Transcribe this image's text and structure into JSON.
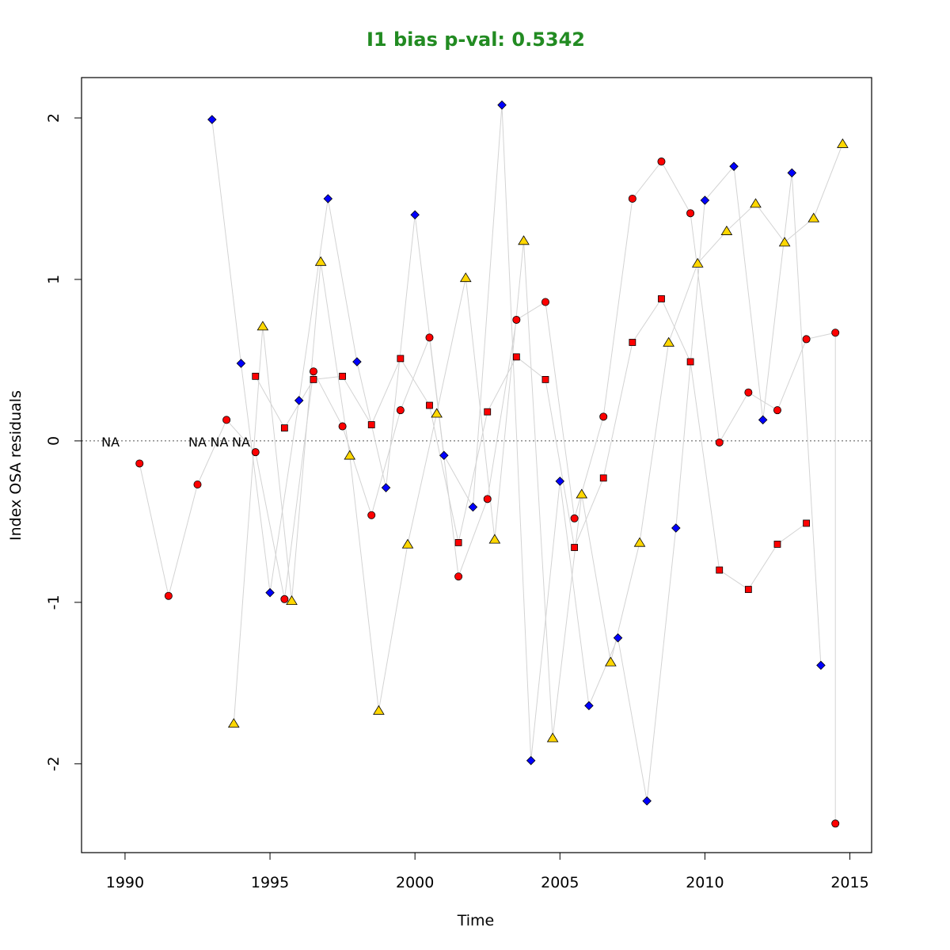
{
  "chart_data": {
    "type": "scatter",
    "title": "I1 bias p-val: 0.5342",
    "title_color": "#228B22",
    "xlabel": "Time",
    "ylabel": "Index OSA residuals",
    "xlim": [
      1988.5,
      2015.75
    ],
    "ylim": [
      -2.55,
      2.25
    ],
    "x_ticks": [
      1990,
      1995,
      2000,
      2005,
      2010,
      2015
    ],
    "y_ticks": [
      -2,
      -1,
      0,
      1,
      2
    ],
    "reference_line": {
      "y": 0,
      "style": "dotted",
      "color": "#555555"
    },
    "connector_color": "#d3d3d3",
    "na_labels": [
      {
        "x": 1989.5,
        "text": "NA"
      },
      {
        "x": 1992.5,
        "text": "NA"
      },
      {
        "x": 1993.25,
        "text": "NA"
      },
      {
        "x": 1994.0,
        "text": "NA"
      }
    ],
    "series": [
      {
        "marker": "circle",
        "color": "#ff0000",
        "points": [
          [
            1990.5,
            -0.14
          ],
          [
            1991.5,
            -0.96
          ],
          [
            1992.5,
            -0.27
          ],
          [
            1993.5,
            0.13
          ],
          [
            1994.5,
            -0.07
          ],
          [
            1995.5,
            -0.98
          ],
          [
            1996.5,
            0.43
          ],
          [
            1997.5,
            0.09
          ],
          [
            1998.5,
            -0.46
          ],
          [
            1999.5,
            0.19
          ],
          [
            2000.5,
            0.64
          ],
          [
            2001.5,
            -0.84
          ],
          [
            2002.5,
            -0.36
          ],
          [
            2003.5,
            0.75
          ],
          [
            2004.5,
            0.86
          ],
          [
            2005.5,
            -0.48
          ],
          [
            2006.5,
            0.15
          ],
          [
            2007.5,
            1.5
          ],
          [
            2008.5,
            1.73
          ],
          [
            2009.5,
            1.41
          ],
          [
            2010.5,
            -0.01
          ],
          [
            2011.5,
            0.3
          ],
          [
            2012.5,
            0.19
          ],
          [
            2013.5,
            0.63
          ],
          [
            2014.5,
            0.67
          ],
          [
            2014.5,
            -2.37
          ]
        ]
      },
      {
        "marker": "square",
        "color": "#ff0000",
        "points": [
          [
            1994.5,
            0.4
          ],
          [
            1995.5,
            0.08
          ],
          [
            1996.5,
            0.38
          ],
          [
            1997.5,
            0.4
          ],
          [
            1998.5,
            0.1
          ],
          [
            1999.5,
            0.51
          ],
          [
            2000.5,
            0.22
          ],
          [
            2001.5,
            -0.63
          ],
          [
            2002.5,
            0.18
          ],
          [
            2003.5,
            0.52
          ],
          [
            2004.5,
            0.38
          ],
          [
            2005.5,
            -0.66
          ],
          [
            2006.5,
            -0.23
          ],
          [
            2007.5,
            0.61
          ],
          [
            2008.5,
            0.88
          ],
          [
            2009.5,
            0.49
          ],
          [
            2010.5,
            -0.8
          ],
          [
            2011.5,
            -0.92
          ],
          [
            2012.5,
            -0.64
          ],
          [
            2013.5,
            -0.51
          ]
        ]
      },
      {
        "marker": "diamond",
        "color": "#0000ff",
        "points": [
          [
            1993.0,
            1.99
          ],
          [
            1994.0,
            0.48
          ],
          [
            1995.0,
            -0.94
          ],
          [
            1996.0,
            0.25
          ],
          [
            1997.0,
            1.5
          ],
          [
            1998.0,
            0.49
          ],
          [
            1999.0,
            -0.29
          ],
          [
            2000.0,
            1.4
          ],
          [
            2001.0,
            -0.09
          ],
          [
            2002.0,
            -0.41
          ],
          [
            2003.0,
            2.08
          ],
          [
            2004.0,
            -1.98
          ],
          [
            2005.0,
            -0.25
          ],
          [
            2006.0,
            -1.64
          ],
          [
            2007.0,
            -1.22
          ],
          [
            2008.0,
            -2.23
          ],
          [
            2009.0,
            -0.54
          ],
          [
            2010.0,
            1.49
          ],
          [
            2011.0,
            1.7
          ],
          [
            2012.0,
            0.13
          ],
          [
            2013.0,
            1.66
          ],
          [
            2014.0,
            -1.39
          ]
        ]
      },
      {
        "marker": "triangle",
        "color": "#ffd700",
        "points": [
          [
            1993.75,
            -1.75
          ],
          [
            1994.75,
            0.71
          ],
          [
            1995.75,
            -0.99
          ],
          [
            1996.75,
            1.11
          ],
          [
            1997.75,
            -0.09
          ],
          [
            1998.75,
            -1.67
          ],
          [
            1999.75,
            -0.64
          ],
          [
            2000.75,
            0.17
          ],
          [
            2001.75,
            1.01
          ],
          [
            2002.75,
            -0.61
          ],
          [
            2003.75,
            1.24
          ],
          [
            2004.75,
            -1.84
          ],
          [
            2005.75,
            -0.33
          ],
          [
            2006.75,
            -1.37
          ],
          [
            2007.75,
            -0.63
          ],
          [
            2008.75,
            0.61
          ],
          [
            2009.75,
            1.1
          ],
          [
            2010.75,
            1.3
          ],
          [
            2011.75,
            1.47
          ],
          [
            2012.75,
            1.23
          ],
          [
            2013.75,
            1.38
          ],
          [
            2014.75,
            1.84
          ]
        ]
      }
    ],
    "connector_paths": [
      [
        [
          1990.5,
          -0.14
        ],
        [
          1991.5,
          -0.96
        ],
        [
          1992.5,
          -0.27
        ],
        [
          1993.5,
          0.13
        ],
        [
          1994.5,
          -0.07
        ],
        [
          1995.5,
          -0.98
        ],
        [
          1996.5,
          0.43
        ],
        [
          1997.5,
          0.09
        ],
        [
          1998.5,
          -0.46
        ],
        [
          1999.5,
          0.19
        ],
        [
          2000.5,
          0.64
        ],
        [
          2001.5,
          -0.84
        ],
        [
          2002.5,
          -0.36
        ],
        [
          2003.5,
          0.75
        ],
        [
          2004.5,
          0.86
        ],
        [
          2005.5,
          -0.48
        ],
        [
          2006.5,
          0.15
        ],
        [
          2007.5,
          1.5
        ],
        [
          2008.5,
          1.73
        ],
        [
          2009.5,
          1.41
        ],
        [
          2010.5,
          -0.01
        ],
        [
          2011.5,
          0.3
        ],
        [
          2012.5,
          0.19
        ],
        [
          2013.5,
          0.63
        ],
        [
          2014.5,
          0.67
        ],
        [
          2014.5,
          -2.37
        ]
      ],
      [
        [
          1994.5,
          0.4
        ],
        [
          1995.5,
          0.08
        ],
        [
          1996.5,
          0.38
        ],
        [
          1997.5,
          0.4
        ],
        [
          1998.5,
          0.1
        ],
        [
          1999.5,
          0.51
        ],
        [
          2000.5,
          0.22
        ],
        [
          2001.5,
          -0.63
        ],
        [
          2002.5,
          0.18
        ],
        [
          2003.5,
          0.52
        ],
        [
          2004.5,
          0.38
        ],
        [
          2005.5,
          -0.66
        ],
        [
          2006.5,
          -0.23
        ],
        [
          2007.5,
          0.61
        ],
        [
          2008.5,
          0.88
        ],
        [
          2009.5,
          0.49
        ],
        [
          2010.5,
          -0.8
        ],
        [
          2011.5,
          -0.92
        ],
        [
          2012.5,
          -0.64
        ],
        [
          2013.5,
          -0.51
        ]
      ],
      [
        [
          1993.0,
          1.99
        ],
        [
          1994.0,
          0.48
        ],
        [
          1995.0,
          -0.94
        ],
        [
          1996.0,
          0.25
        ],
        [
          1997.0,
          1.5
        ],
        [
          1998.0,
          0.49
        ],
        [
          1999.0,
          -0.29
        ],
        [
          2000.0,
          1.4
        ],
        [
          2001.0,
          -0.09
        ],
        [
          2002.0,
          -0.41
        ],
        [
          2003.0,
          2.08
        ],
        [
          2004.0,
          -1.98
        ],
        [
          2005.0,
          -0.25
        ],
        [
          2006.0,
          -1.64
        ],
        [
          2007.0,
          -1.22
        ],
        [
          2008.0,
          -2.23
        ],
        [
          2009.0,
          -0.54
        ],
        [
          2010.0,
          1.49
        ],
        [
          2011.0,
          1.7
        ],
        [
          2012.0,
          0.13
        ],
        [
          2013.0,
          1.66
        ],
        [
          2014.0,
          -1.39
        ]
      ],
      [
        [
          1993.75,
          -1.75
        ],
        [
          1994.75,
          0.71
        ],
        [
          1995.75,
          -0.99
        ],
        [
          1996.75,
          1.11
        ],
        [
          1997.75,
          -0.09
        ],
        [
          1998.75,
          -1.67
        ],
        [
          1999.75,
          -0.64
        ],
        [
          2000.75,
          0.17
        ],
        [
          2001.75,
          1.01
        ],
        [
          2002.75,
          -0.61
        ],
        [
          2003.75,
          1.24
        ],
        [
          2004.75,
          -1.84
        ],
        [
          2005.75,
          -0.33
        ],
        [
          2006.75,
          -1.37
        ],
        [
          2007.75,
          -0.63
        ],
        [
          2008.75,
          0.61
        ],
        [
          2009.75,
          1.1
        ],
        [
          2010.75,
          1.3
        ],
        [
          2011.75,
          1.47
        ],
        [
          2012.75,
          1.23
        ],
        [
          2013.75,
          1.38
        ],
        [
          2014.75,
          1.84
        ]
      ]
    ]
  }
}
